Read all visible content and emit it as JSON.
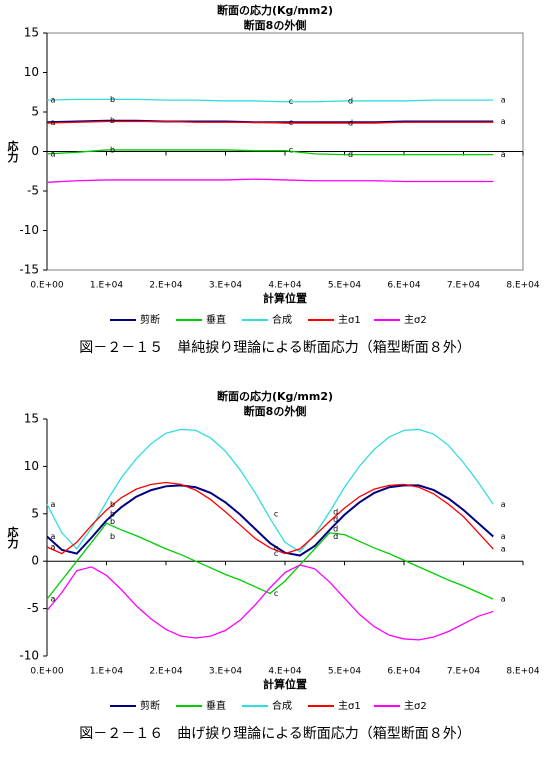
{
  "chart_data": [
    {
      "type": "line",
      "title": "断面の応力(Kg/mm2)",
      "subtitle": "断面8の外側",
      "xlabel": "計算位置",
      "ylabel": "応力",
      "caption": "図－２－１５　単純捩り理論による断面応力（箱型断面８外）",
      "frame": true,
      "legend": "bottom",
      "xlim": [
        0,
        80000
      ],
      "ylim": [
        -15,
        15
      ],
      "xticks": [
        {
          "value": 0,
          "label": "0.E+00"
        },
        {
          "value": 10000,
          "label": "1.E+04"
        },
        {
          "value": 20000,
          "label": "2.E+04"
        },
        {
          "value": 30000,
          "label": "3.E+04"
        },
        {
          "value": 40000,
          "label": "4.E+04"
        },
        {
          "value": 50000,
          "label": "5.E+04"
        },
        {
          "value": 60000,
          "label": "6.E+04"
        },
        {
          "value": 70000,
          "label": "7.E+04"
        },
        {
          "value": 80000,
          "label": "8.E+04"
        }
      ],
      "yticks": [
        -15,
        -10,
        -5,
        0,
        5,
        10,
        15
      ],
      "x": [
        0,
        5000,
        10000,
        15000,
        20000,
        25000,
        30000,
        35000,
        40000,
        45000,
        50000,
        55000,
        60000,
        65000,
        70000,
        75000
      ],
      "series": [
        {
          "name": "剪断",
          "color": "#000080",
          "values": [
            3.7,
            3.8,
            3.9,
            3.9,
            3.8,
            3.8,
            3.8,
            3.7,
            3.7,
            3.7,
            3.7,
            3.7,
            3.8,
            3.8,
            3.8,
            3.8
          ]
        },
        {
          "name": "垂直",
          "color": "#00cc00",
          "values": [
            -0.3,
            -0.1,
            0.2,
            0.2,
            0.2,
            0.2,
            0.2,
            0.1,
            0.1,
            -0.3,
            -0.4,
            -0.4,
            -0.4,
            -0.4,
            -0.4,
            -0.4
          ]
        },
        {
          "name": "合成",
          "color": "#33dddd",
          "values": [
            6.5,
            6.6,
            6.6,
            6.6,
            6.5,
            6.5,
            6.4,
            6.4,
            6.3,
            6.3,
            6.4,
            6.4,
            6.4,
            6.5,
            6.5,
            6.5
          ]
        },
        {
          "name": "主σ1",
          "color": "#ff0000",
          "values": [
            3.6,
            3.7,
            3.8,
            3.8,
            3.8,
            3.7,
            3.7,
            3.7,
            3.6,
            3.6,
            3.6,
            3.6,
            3.7,
            3.7,
            3.7,
            3.7
          ]
        },
        {
          "name": "主σ2",
          "color": "#ff00ff",
          "values": [
            -3.9,
            -3.7,
            -3.6,
            -3.6,
            -3.6,
            -3.6,
            -3.6,
            -3.5,
            -3.6,
            -3.7,
            -3.7,
            -3.7,
            -3.8,
            -3.8,
            -3.8,
            -3.8
          ]
        }
      ],
      "annotations": [
        {
          "text": "a",
          "x": 0,
          "y": 6.5
        },
        {
          "text": "a",
          "x": 0,
          "y": 3.7
        },
        {
          "text": "a",
          "x": 0,
          "y": -0.3
        },
        {
          "text": "b",
          "x": 10000,
          "y": 6.6
        },
        {
          "text": "b",
          "x": 10000,
          "y": 3.9
        },
        {
          "text": "b",
          "x": 10000,
          "y": 0.2
        },
        {
          "text": "c",
          "x": 40000,
          "y": 6.3
        },
        {
          "text": "c",
          "x": 40000,
          "y": 3.7
        },
        {
          "text": "c",
          "x": 40000,
          "y": 0.2
        },
        {
          "text": "d",
          "x": 50000,
          "y": 6.4
        },
        {
          "text": "d",
          "x": 50000,
          "y": 3.6
        },
        {
          "text": "d",
          "x": 50000,
          "y": -0.4
        },
        {
          "text": "a",
          "x": 75000,
          "y": 6.5
        },
        {
          "text": "a",
          "x": 75000,
          "y": 3.8
        },
        {
          "text": "a",
          "x": 75000,
          "y": -0.4
        }
      ]
    },
    {
      "type": "line",
      "title": "断面の応力(Kg/mm2)",
      "subtitle": "断面8の外側",
      "xlabel": "計算位置",
      "ylabel": "応力",
      "caption": "図－２－１６　曲げ捩り理論による断面応力（箱型断面８外）",
      "frame": false,
      "legend": "bottom",
      "xlim": [
        0,
        80000
      ],
      "ylim": [
        -10,
        15
      ],
      "xticks": [
        {
          "value": 0,
          "label": "0.E+00"
        },
        {
          "value": 10000,
          "label": "1.E+04"
        },
        {
          "value": 20000,
          "label": "2.E+04"
        },
        {
          "value": 30000,
          "label": "3.E+04"
        },
        {
          "value": 40000,
          "label": "4.E+04"
        },
        {
          "value": 50000,
          "label": "5.E+04"
        },
        {
          "value": 60000,
          "label": "6.E+04"
        },
        {
          "value": 70000,
          "label": "7.E+04"
        },
        {
          "value": 80000,
          "label": "8.E+04"
        }
      ],
      "yticks": [
        -10,
        -5,
        0,
        5,
        10,
        15
      ],
      "x": [
        0,
        2500,
        5000,
        7500,
        10000,
        12500,
        15000,
        17500,
        20000,
        22500,
        25000,
        27500,
        30000,
        32500,
        35000,
        37500,
        40000,
        42500,
        45000,
        47500,
        50000,
        52500,
        55000,
        57500,
        60000,
        62500,
        65000,
        67500,
        70000,
        72500,
        75000
      ],
      "series": [
        {
          "name": "剪断",
          "color": "#000080",
          "values": [
            2.6,
            1.2,
            0.8,
            2.5,
            4.3,
            5.7,
            6.8,
            7.5,
            7.9,
            8.0,
            7.8,
            7.2,
            6.2,
            4.9,
            3.4,
            1.9,
            0.9,
            0.6,
            1.6,
            3.3,
            4.9,
            6.2,
            7.2,
            7.8,
            8.0,
            8.0,
            7.5,
            6.6,
            5.4,
            4.0,
            2.6
          ]
        },
        {
          "name": "垂直",
          "color": "#00cc00",
          "values": [
            -4.0,
            -2.0,
            0.0,
            2.0,
            4.0,
            3.3,
            2.7,
            2.0,
            1.3,
            0.7,
            0.0,
            -0.7,
            -1.4,
            -2.0,
            -2.7,
            -3.4,
            -2.1,
            -0.4,
            1.3,
            3.0,
            2.8,
            2.1,
            1.4,
            0.8,
            0.1,
            -0.6,
            -1.3,
            -2.0,
            -2.6,
            -3.3,
            -4.0
          ]
        },
        {
          "name": "合成",
          "color": "#33dddd",
          "values": [
            6.0,
            3.0,
            1.3,
            3.5,
            6.3,
            8.8,
            10.8,
            12.4,
            13.5,
            13.9,
            13.8,
            13.0,
            11.6,
            9.6,
            7.2,
            4.5,
            2.0,
            1.0,
            2.8,
            5.2,
            7.8,
            10.0,
            11.8,
            13.1,
            13.8,
            13.9,
            13.4,
            12.2,
            10.4,
            8.3,
            6.0
          ]
        },
        {
          "name": "主σ1",
          "color": "#ff0000",
          "values": [
            1.5,
            0.8,
            2.0,
            3.8,
            5.4,
            6.7,
            7.6,
            8.1,
            8.3,
            8.1,
            7.5,
            6.5,
            5.2,
            3.8,
            2.4,
            1.4,
            0.8,
            1.3,
            2.7,
            4.2,
            5.6,
            6.8,
            7.6,
            8.0,
            8.1,
            7.8,
            7.1,
            6.0,
            4.7,
            3.0,
            1.3
          ]
        },
        {
          "name": "主σ2",
          "color": "#ff00ff",
          "values": [
            -5.2,
            -3.3,
            -1.0,
            -0.6,
            -1.5,
            -3.0,
            -4.7,
            -6.1,
            -7.2,
            -7.9,
            -8.1,
            -7.9,
            -7.3,
            -6.2,
            -4.6,
            -2.8,
            -1.2,
            -0.4,
            -0.8,
            -2.2,
            -3.9,
            -5.6,
            -6.9,
            -7.8,
            -8.2,
            -8.3,
            -8.0,
            -7.4,
            -6.6,
            -5.8,
            -5.3
          ]
        }
      ],
      "annotations": [
        {
          "text": "a",
          "x": 0,
          "y": 6.0
        },
        {
          "text": "a",
          "x": 0,
          "y": 2.6
        },
        {
          "text": "a",
          "x": 0,
          "y": 1.5
        },
        {
          "text": "a",
          "x": 0,
          "y": -4.0
        },
        {
          "text": "b",
          "x": 10000,
          "y": 6.0
        },
        {
          "text": "b",
          "x": 10000,
          "y": 5.0
        },
        {
          "text": "b",
          "x": 10000,
          "y": 4.2
        },
        {
          "text": "b",
          "x": 10000,
          "y": 2.6
        },
        {
          "text": "c",
          "x": 37500,
          "y": 5.0
        },
        {
          "text": "c",
          "x": 37500,
          "y": 1.4
        },
        {
          "text": "c",
          "x": 37500,
          "y": 0.8
        },
        {
          "text": "c",
          "x": 37500,
          "y": -3.4
        },
        {
          "text": "d",
          "x": 47500,
          "y": 5.2
        },
        {
          "text": "d",
          "x": 47500,
          "y": 4.4
        },
        {
          "text": "d",
          "x": 47500,
          "y": 3.4
        },
        {
          "text": "d",
          "x": 47500,
          "y": 2.6
        },
        {
          "text": "a",
          "x": 75000,
          "y": 6.0
        },
        {
          "text": "a",
          "x": 75000,
          "y": 2.6
        },
        {
          "text": "a",
          "x": 75000,
          "y": 1.3
        },
        {
          "text": "a",
          "x": 75000,
          "y": -4.0
        }
      ]
    }
  ]
}
